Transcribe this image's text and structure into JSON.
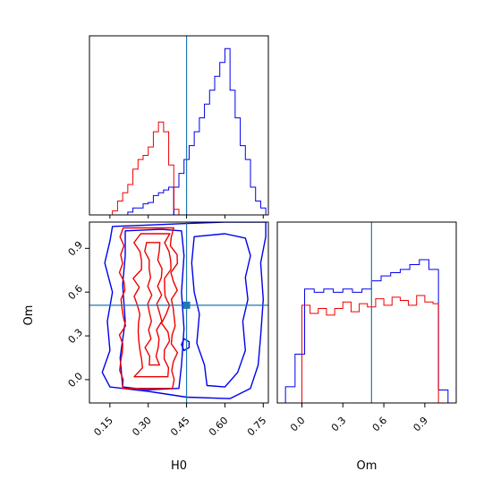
{
  "colors": {
    "blue": "#0000ee",
    "red": "#ee0000",
    "truth": "#1f77b4"
  },
  "chart_data": [
    {
      "panel": "H0 marginal (top-left)",
      "type": "histogram",
      "xlim": [
        0.07,
        0.77
      ],
      "truth": 0.45,
      "yticks_shown": false,
      "series": [
        {
          "color": "blue",
          "bins_x": [
            0.4,
            0.42,
            0.44,
            0.46,
            0.48,
            0.5,
            0.52,
            0.54,
            0.56,
            0.58,
            0.6,
            0.62,
            0.64,
            0.66,
            0.68,
            0.7,
            0.72,
            0.74,
            0.76
          ],
          "counts": [
            2,
            3,
            4,
            5,
            6,
            7,
            8,
            9,
            10,
            11,
            12,
            9,
            7,
            5,
            4,
            2,
            1,
            0.5
          ],
          "lead_in": {
            "bins_x": [
              0.22,
              0.24,
              0.26,
              0.28,
              0.3,
              0.32,
              0.34,
              0.36,
              0.38,
              0.4
            ],
            "counts": [
              0.2,
              0.5,
              0.5,
              0.8,
              0.9,
              1.4,
              1.6,
              1.8,
              2.0
            ]
          }
        },
        {
          "color": "red",
          "bins_x": [
            0.16,
            0.18,
            0.2,
            0.22,
            0.24,
            0.26,
            0.28,
            0.3,
            0.32,
            0.34,
            0.36,
            0.38,
            0.4,
            0.42
          ],
          "counts": [
            0.3,
            1.0,
            1.6,
            2.2,
            3.3,
            4.0,
            4.3,
            4.9,
            6.0,
            6.7,
            6.0,
            3.6,
            0.4
          ]
        }
      ]
    },
    {
      "panel": "H0 vs Om contours (bottom-left)",
      "type": "contour",
      "xlabel": "H0",
      "ylabel": "Om",
      "xlim": [
        0.07,
        0.77
      ],
      "ylim": [
        -0.16,
        1.08
      ],
      "xticks": [
        "0.15",
        "0.30",
        "0.45",
        "0.60",
        "0.75"
      ],
      "yticks": [
        "0.0",
        "0.3",
        "0.6",
        "0.9"
      ],
      "truth": {
        "x": 0.45,
        "y": 0.51
      },
      "series": [
        {
          "color": "blue",
          "region_x": [
            0.12,
            0.76
          ],
          "region_y": [
            -0.13,
            1.08
          ]
        },
        {
          "color": "red",
          "region_x": [
            0.18,
            0.43
          ],
          "region_y": [
            -0.07,
            1.05
          ]
        }
      ]
    },
    {
      "panel": "Om marginal (bottom-right)",
      "type": "histogram",
      "xlabel": "Om",
      "xlim": [
        -0.18,
        1.13
      ],
      "xticks": [
        "0.0",
        "0.3",
        "0.6",
        "0.9"
      ],
      "truth": 0.51,
      "series": [
        {
          "color": "blue",
          "bins_x": [
            -0.12,
            -0.05,
            0.02,
            0.09,
            0.16,
            0.23,
            0.3,
            0.37,
            0.44,
            0.51,
            0.58,
            0.65,
            0.72,
            0.79,
            0.86,
            0.93,
            1.0,
            1.07
          ],
          "counts": [
            1,
            3,
            7,
            6.8,
            7,
            6.8,
            7,
            6.8,
            7,
            7.5,
            7.8,
            8,
            8.2,
            8.5,
            8.8,
            8.2,
            0.8
          ]
        },
        {
          "color": "red",
          "bins_x": [
            0.0,
            0.06,
            0.12,
            0.18,
            0.24,
            0.3,
            0.36,
            0.42,
            0.48,
            0.54,
            0.6,
            0.66,
            0.72,
            0.78,
            0.84,
            0.9,
            0.96,
            1.0
          ],
          "counts": [
            6,
            5.5,
            5.8,
            5.4,
            5.8,
            6.2,
            5.6,
            6.1,
            5.9,
            6.4,
            6.0,
            6.5,
            6.3,
            6.0,
            6.6,
            6.2,
            6.1
          ]
        }
      ]
    }
  ]
}
